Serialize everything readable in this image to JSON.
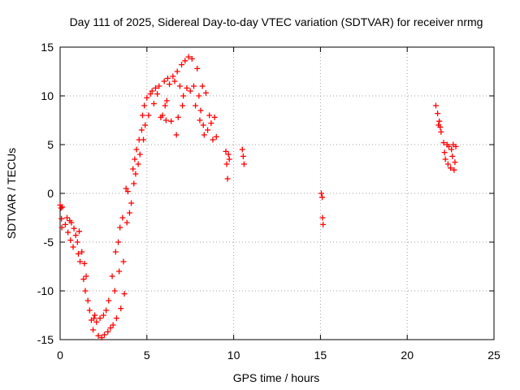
{
  "chart_data": {
    "type": "scatter",
    "title": "Day 111 of 2025, Sidereal Day-to-day VTEC variation (SDTVAR) for receiver nrmg",
    "xlabel": "GPS time / hours",
    "ylabel": "SDTVAR / TECUs",
    "xlim": [
      0,
      25
    ],
    "ylim": [
      -15,
      15
    ],
    "xticks": [
      0,
      5,
      10,
      15,
      20,
      25
    ],
    "yticks": [
      -15,
      -10,
      -5,
      0,
      5,
      10,
      15
    ],
    "xtick_labels": [
      "0",
      "5",
      "10",
      "15",
      "20",
      "25"
    ],
    "ytick_labels": [
      "-15",
      "-10",
      "-5",
      "0",
      "5",
      "10",
      "15"
    ],
    "grid": true,
    "marker": "plus",
    "color": "#ff0000",
    "series": [
      {
        "name": "SDTVAR",
        "points": [
          [
            0.0,
            -1.2
          ],
          [
            0.05,
            -1.5
          ],
          [
            0.08,
            -2.6
          ],
          [
            0.1,
            -3.5
          ],
          [
            0.12,
            -1.4
          ],
          [
            0.3,
            -3.2
          ],
          [
            0.4,
            -2.5
          ],
          [
            0.45,
            -4.0
          ],
          [
            0.55,
            -2.8
          ],
          [
            0.6,
            -4.8
          ],
          [
            0.65,
            -3.0
          ],
          [
            0.75,
            -5.5
          ],
          [
            0.8,
            -3.6
          ],
          [
            0.9,
            -4.3
          ],
          [
            1.0,
            -5.0
          ],
          [
            1.05,
            -6.2
          ],
          [
            1.1,
            -3.9
          ],
          [
            1.15,
            -7.0
          ],
          [
            1.25,
            -6.0
          ],
          [
            1.35,
            -8.8
          ],
          [
            1.4,
            -7.2
          ],
          [
            1.45,
            -10.0
          ],
          [
            1.5,
            -8.5
          ],
          [
            1.6,
            -11.0
          ],
          [
            1.7,
            -12.0
          ],
          [
            1.8,
            -13.0
          ],
          [
            1.9,
            -14.0
          ],
          [
            1.95,
            -12.8
          ],
          [
            2.0,
            -12.5
          ],
          [
            2.1,
            -13.2
          ],
          [
            2.2,
            -14.6
          ],
          [
            2.3,
            -12.8
          ],
          [
            2.4,
            -14.8
          ],
          [
            2.5,
            -12.5
          ],
          [
            2.55,
            -14.5
          ],
          [
            2.65,
            -12.0
          ],
          [
            2.75,
            -14.2
          ],
          [
            2.8,
            -11.0
          ],
          [
            2.9,
            -13.8
          ],
          [
            3.0,
            -8.5
          ],
          [
            3.05,
            -13.5
          ],
          [
            3.15,
            -10.0
          ],
          [
            3.2,
            -6.0
          ],
          [
            3.25,
            -12.8
          ],
          [
            3.35,
            -5.0
          ],
          [
            3.4,
            -8.0
          ],
          [
            3.45,
            -3.5
          ],
          [
            3.5,
            -11.8
          ],
          [
            3.6,
            -2.5
          ],
          [
            3.65,
            -7.0
          ],
          [
            3.7,
            -10.3
          ],
          [
            3.8,
            0.5
          ],
          [
            3.85,
            -3.0
          ],
          [
            3.9,
            0.2
          ],
          [
            4.0,
            -2.0
          ],
          [
            4.1,
            -1.0
          ],
          [
            4.2,
            2.5
          ],
          [
            4.25,
            1.0
          ],
          [
            4.3,
            3.5
          ],
          [
            4.35,
            2.0
          ],
          [
            4.4,
            4.5
          ],
          [
            4.5,
            3.0
          ],
          [
            4.55,
            5.5
          ],
          [
            4.6,
            4.0
          ],
          [
            4.7,
            6.5
          ],
          [
            4.75,
            8.0
          ],
          [
            4.8,
            5.5
          ],
          [
            4.85,
            9.0
          ],
          [
            4.9,
            7.0
          ],
          [
            5.0,
            9.8
          ],
          [
            5.1,
            8.0
          ],
          [
            5.2,
            10.2
          ],
          [
            5.3,
            10.5
          ],
          [
            5.4,
            9.2
          ],
          [
            5.5,
            10.8
          ],
          [
            5.6,
            10.2
          ],
          [
            5.7,
            11.0
          ],
          [
            5.8,
            7.8
          ],
          [
            5.9,
            8.0
          ],
          [
            6.0,
            11.5
          ],
          [
            6.05,
            9.0
          ],
          [
            6.1,
            7.5
          ],
          [
            6.15,
            9.5
          ],
          [
            6.2,
            11.8
          ],
          [
            6.3,
            11.2
          ],
          [
            6.4,
            7.4
          ],
          [
            6.5,
            12.0
          ],
          [
            6.6,
            11.5
          ],
          [
            6.7,
            6.0
          ],
          [
            6.75,
            12.5
          ],
          [
            6.8,
            7.8
          ],
          [
            6.9,
            11.0
          ],
          [
            7.0,
            13.2
          ],
          [
            7.05,
            9.0
          ],
          [
            7.1,
            10.0
          ],
          [
            7.2,
            13.6
          ],
          [
            7.3,
            10.8
          ],
          [
            7.4,
            14.0
          ],
          [
            7.5,
            10.5
          ],
          [
            7.6,
            13.8
          ],
          [
            7.7,
            11.0
          ],
          [
            7.8,
            9.0
          ],
          [
            7.9,
            12.8
          ],
          [
            8.0,
            10.0
          ],
          [
            8.05,
            7.5
          ],
          [
            8.1,
            8.5
          ],
          [
            8.2,
            11.0
          ],
          [
            8.25,
            7.0
          ],
          [
            8.3,
            6.0
          ],
          [
            8.4,
            10.3
          ],
          [
            8.5,
            6.5
          ],
          [
            8.6,
            8.0
          ],
          [
            8.7,
            7.2
          ],
          [
            8.8,
            5.5
          ],
          [
            8.9,
            7.8
          ],
          [
            9.0,
            5.8
          ],
          [
            9.55,
            4.3
          ],
          [
            9.6,
            3.0
          ],
          [
            9.65,
            1.5
          ],
          [
            9.7,
            4.0
          ],
          [
            9.75,
            3.5
          ],
          [
            10.5,
            4.5
          ],
          [
            10.55,
            3.8
          ],
          [
            10.6,
            3.0
          ],
          [
            15.05,
            0.0
          ],
          [
            15.1,
            -0.4
          ],
          [
            15.12,
            -2.5
          ],
          [
            15.15,
            -3.2
          ],
          [
            21.65,
            9.0
          ],
          [
            21.75,
            8.2
          ],
          [
            21.8,
            7.0
          ],
          [
            21.85,
            7.4
          ],
          [
            21.9,
            6.8
          ],
          [
            21.95,
            6.3
          ],
          [
            22.1,
            5.2
          ],
          [
            22.15,
            4.2
          ],
          [
            22.2,
            3.5
          ],
          [
            22.3,
            5.0
          ],
          [
            22.35,
            3.0
          ],
          [
            22.4,
            4.8
          ],
          [
            22.5,
            2.6
          ],
          [
            22.55,
            4.5
          ],
          [
            22.6,
            3.8
          ],
          [
            22.65,
            5.0
          ],
          [
            22.7,
            2.4
          ],
          [
            22.75,
            3.2
          ],
          [
            22.8,
            4.8
          ]
        ]
      }
    ]
  }
}
